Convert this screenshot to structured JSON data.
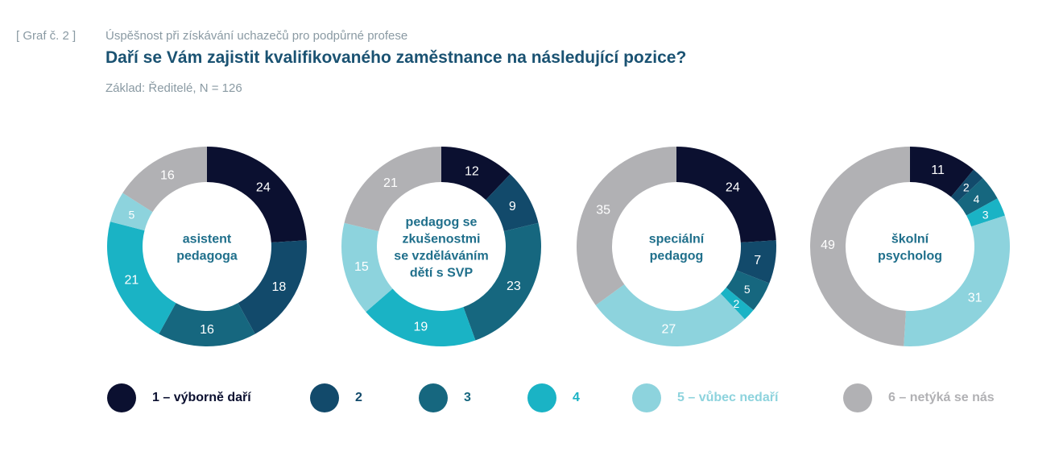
{
  "header": {
    "tag": "[ Graf č. 2 ]",
    "subtitle": "Úspěšnost při získávání uchazečů pro podpůrné profese",
    "title": "Daří se Vám zajistit kvalifikovaného zaměstnance na následující pozice?",
    "base": "Základ: Ředitelé, N = 126"
  },
  "chart_data": {
    "type": "pie",
    "variant": "donut",
    "unit": "%",
    "title": "Daří se Vám zajistit kvalifikovaného zaměstnance na následující pozice?",
    "categories": [
      "1 – výborně daří",
      "2",
      "3",
      "4",
      "5 – vůbec nedaří",
      "6 – netýká se nás"
    ],
    "colors": [
      "#0b1030",
      "#124a6b",
      "#16677f",
      "#1ab3c5",
      "#8dd3dd",
      "#b1b1b4"
    ],
    "legend_text_colors": [
      "#0b1030",
      "#124a6b",
      "#16677f",
      "#1ab3c5",
      "#8dd3dd",
      "#b1b1b4"
    ],
    "legend_position": "bottom",
    "charts": [
      {
        "label_lines": [
          "asistent",
          "pedagoga"
        ],
        "values": [
          24,
          18,
          16,
          21,
          5,
          16
        ]
      },
      {
        "label_lines": [
          "pedagog se",
          "zkušenostmi",
          "se vzděláváním",
          "dětí s SVP"
        ],
        "values": [
          12,
          9,
          23,
          19,
          15,
          21
        ]
      },
      {
        "label_lines": [
          "speciální",
          "pedagog"
        ],
        "values": [
          24,
          7,
          5,
          2,
          27,
          35
        ]
      },
      {
        "label_lines": [
          "školní",
          "psycholog"
        ],
        "values": [
          11,
          2,
          4,
          3,
          31,
          49
        ]
      }
    ]
  }
}
